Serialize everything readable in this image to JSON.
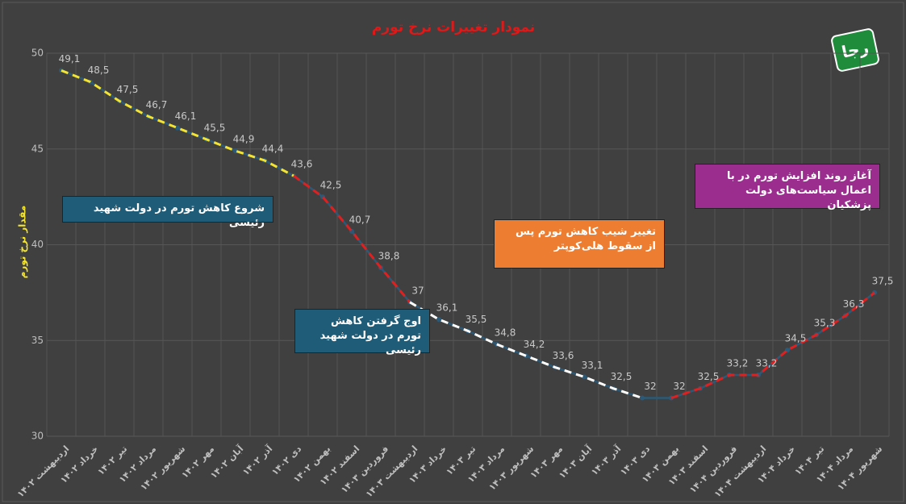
{
  "chart_data": {
    "type": "line",
    "title": "نمودار تغییرات نرخ تورم",
    "y_label": "مقدار نرخ تورم",
    "logo": "رجا",
    "categories": [
      "اردیبهشت ۱۴۰۲",
      "خرداد ۱۴۰۲",
      "تیر ۱۴۰۲",
      "مرداد ۱۴۰۲",
      "شهریور ۱۴۰۲",
      "مهر ۱۴۰۲",
      "آبان ۱۴۰۲",
      "آذر ۱۴۰۲",
      "دی ۱۴۰۲",
      "بهمن ۱۴۰۲",
      "اسفند ۱۴۰۲",
      "فروردین ۱۴۰۳",
      "اردیبهشت ۱۴۰۳",
      "خرداد ۱۴۰۳",
      "تیر ۱۴۰۳",
      "مرداد ۱۴۰۳",
      "شهریور ۱۴۰۳",
      "مهر ۱۴۰۳",
      "آبان ۱۴۰۳",
      "آذر ۱۴۰۳",
      "دی ۱۴۰۳",
      "بهمن ۱۴۰۳",
      "اسفند ۱۴۰۳",
      "فروردین ۱۴۰۴",
      "اردیبهشت ۱۴۰۴",
      "خرداد ۱۴۰۴",
      "تیر ۱۴۰۴",
      "مرداد ۱۴۰۴",
      "شهریور ۱۴۰۴"
    ],
    "values": [
      49.1,
      48.5,
      47.5,
      46.7,
      46.1,
      45.5,
      44.9,
      44.4,
      43.6,
      42.5,
      40.7,
      38.8,
      37,
      36.1,
      35.5,
      34.8,
      34.2,
      33.6,
      33.1,
      32.5,
      32,
      32,
      32.5,
      33.2,
      33.2,
      34.5,
      35.3,
      36.3,
      37.5
    ],
    "value_labels": [
      "49,1",
      "48,5",
      "47,5",
      "46,7",
      "46,1",
      "45,5",
      "44,9",
      "44,4",
      "43,6",
      "42,5",
      "40,7",
      "38,8",
      "37",
      "36,1",
      "35,5",
      "34,8",
      "34,2",
      "33,6",
      "33,1",
      "32,5",
      "32",
      "32",
      "32,5",
      "33,2",
      "33,2",
      "34,5",
      "35,3",
      "36,3",
      "37,5"
    ],
    "color": "#2b5a78",
    "ylim": [
      30,
      50
    ],
    "yticks": [
      30,
      35,
      40,
      45,
      50
    ],
    "grid": true,
    "trends": [
      {
        "color": "#f2e431",
        "range": [
          0,
          8
        ]
      },
      {
        "color": "#e02020",
        "range": [
          8,
          12
        ]
      },
      {
        "color": "#ffffff",
        "range": [
          12,
          20
        ]
      },
      {
        "color": "#e02020",
        "range": [
          21,
          28
        ]
      }
    ],
    "annotations": [
      {
        "text": "شروع کاهش تورم در دولت شهید رئیسی",
        "color": "#1f5c78"
      },
      {
        "text": "اوج گرفتن کاهش تورم در دولت شهید رئیسی",
        "color": "#1f5c78"
      },
      {
        "text": "تغییر شیب کاهش تورم پس از سقوط هلی‌کوپتر",
        "color": "#ed7d31"
      },
      {
        "text": "آغاز روند افزایش تورم در با اعمال سیاست‌های دولت پزشکیان",
        "color": "#9b2d8f"
      }
    ]
  }
}
